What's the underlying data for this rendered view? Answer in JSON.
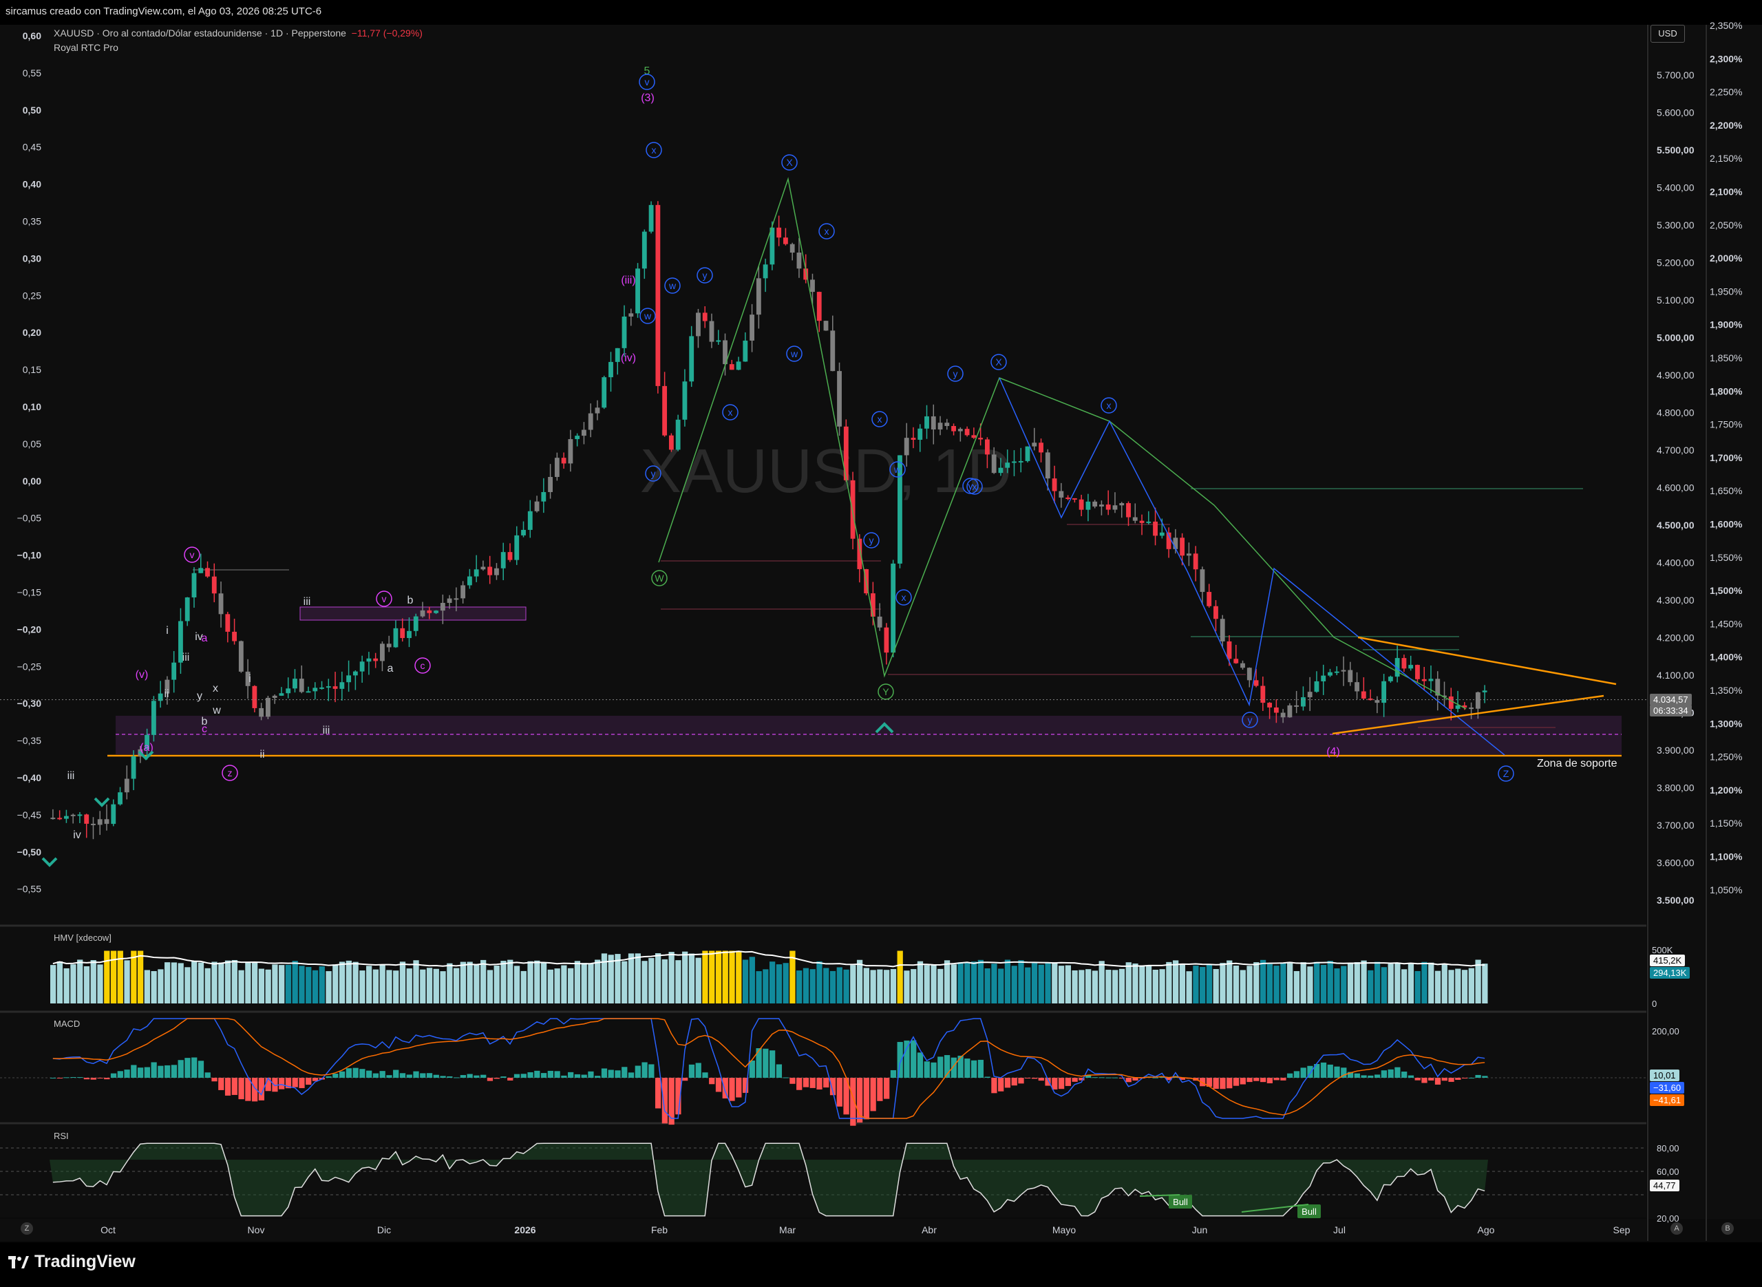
{
  "header": {
    "attribution": "sircamus creado con TradingView.com, el Ago 03, 2026 08:25 UTC-6"
  },
  "legend": {
    "symbol_line": "XAUUSD · Oro al contado/Dólar estadounidense · 1D · Pepperstone",
    "change": "−11,77 (−0,29%)",
    "indicator": "Royal RTC Pro",
    "watermark": "XAUUSD, 1D"
  },
  "currency": "USD",
  "price_tag": {
    "price": "4.034,57",
    "countdown": "06:33:34"
  },
  "zone_label": "Zona de soporte",
  "footer": {
    "brand": "TradingView",
    "btn_left": "Z",
    "btn_auto": "A",
    "btn_log": "B"
  },
  "colors": {
    "up": "#22ab94",
    "down": "#f23645",
    "neutral": "#808080",
    "orange": "#ff9800",
    "wave_blue": "#2962ff",
    "wave_purple": "#e040fb",
    "wave_green": "#4caf50",
    "vol_light": "#a8d8dc",
    "vol_dark": "#118a9c",
    "vol_yellow": "#f9d000"
  },
  "chart_data": [
    {
      "type": "line",
      "name": "main",
      "x_axis_labels": [
        "Oct",
        "Nov",
        "Dic",
        "2026",
        "Feb",
        "Mar",
        "Abr",
        "Mayo",
        "Jun",
        "Jul",
        "Ago",
        "Sep"
      ],
      "right_axis": {
        "labels": [
          "5.700,00",
          "5.600,00",
          "5.500,00",
          "5.400,00",
          "5.300,00",
          "5.200,00",
          "5.100,00",
          "5.000,00",
          "4.900,00",
          "4.800,00",
          "4.700,00",
          "4.600,00",
          "4.500,00",
          "4.400,00",
          "4.300,00",
          "4.200,00",
          "4.100,00",
          "4.000,00",
          "3.900,00",
          "3.800,00",
          "3.700,00",
          "3.600,00",
          "3.500,00"
        ],
        "ylim": [
          3450,
          5800
        ]
      },
      "far_right_axis": {
        "labels": [
          "2,350%",
          "2,300%",
          "2,250%",
          "2,200%",
          "2,150%",
          "2,100%",
          "2,050%",
          "2,000%",
          "1,950%",
          "1,900%",
          "1,850%",
          "1,800%",
          "1,750%",
          "1,700%",
          "1,650%",
          "1,600%",
          "1,550%",
          "1,500%",
          "1,450%",
          "1,400%",
          "1,350%",
          "1,300%",
          "1,250%",
          "1,200%",
          "1,150%",
          "1,100%",
          "1,050%"
        ]
      },
      "left_axis": {
        "labels": [
          "0,60",
          "0,55",
          "0,50",
          "0,45",
          "0,40",
          "0,35",
          "0,30",
          "0,25",
          "0,20",
          "0,15",
          "0,10",
          "0,05",
          "0,00",
          "−0,05",
          "−0,10",
          "−0,15",
          "−0,20",
          "−0,25",
          "−0,30",
          "−0,35",
          "−0,40",
          "−0,45",
          "−0,50",
          "−0,55"
        ]
      },
      "close_series_approx": {
        "x_month_index": [
          0.0,
          0.25,
          0.45,
          0.6,
          0.8,
          1.0,
          1.3,
          1.6,
          2.0,
          2.3,
          2.6,
          2.9,
          3.2,
          3.5,
          3.8,
          3.95,
          4.0,
          4.1,
          4.3,
          4.6,
          4.9,
          5.1,
          5.3,
          5.5,
          5.7,
          5.8,
          6.0,
          6.3,
          6.5,
          6.8,
          7.0,
          7.3,
          7.6,
          7.9,
          8.2,
          8.4,
          8.6,
          8.8,
          9.0,
          9.2,
          9.4,
          9.6,
          9.75
        ],
        "y": [
          3720,
          3950,
          4150,
          4420,
          4250,
          4000,
          4080,
          4060,
          4180,
          4260,
          4350,
          4420,
          4640,
          4800,
          5100,
          5400,
          4750,
          4720,
          5070,
          4900,
          5300,
          5200,
          4980,
          4370,
          4150,
          4700,
          4780,
          4760,
          4640,
          4700,
          4560,
          4560,
          4500,
          4430,
          4150,
          4050,
          4000,
          4060,
          4130,
          4010,
          4130,
          4080,
          4035
        ]
      },
      "annotations": [
        "5",
        "v",
        "(3)",
        "x",
        "X",
        "x",
        "w",
        "y",
        "(iii)",
        "(iv)",
        "w",
        "y",
        "w",
        "x",
        "y",
        "X",
        "x",
        "w",
        "y",
        "x",
        "y",
        "Y",
        "W",
        "x",
        "x",
        "y",
        "Z",
        "(4)",
        "iii",
        "v",
        "b",
        "a",
        "c",
        "i",
        "ii",
        "iii",
        "iv",
        "x",
        "w",
        "a",
        "b",
        "c",
        "y",
        "z",
        "iv",
        "(v)",
        "(a)"
      ],
      "support_level": 3875,
      "triangle_upper": [
        [
          9.15,
          4200
        ],
        [
          9.95,
          4060
        ]
      ],
      "triangle_lower": [
        [
          8.95,
          3960
        ],
        [
          9.95,
          4080
        ]
      ]
    },
    {
      "type": "bar",
      "name": "HMV [xdecow]",
      "title": "HMV [xdecow]",
      "axis_labels": [
        "500K",
        "0"
      ],
      "last_value": "415,2K",
      "last_ma": "294,13K"
    },
    {
      "type": "bar",
      "name": "MACD",
      "title": "MACD",
      "axis_labels": [
        "200,00"
      ],
      "histogram": "10,01",
      "macd": "−31,60",
      "signal": "−41,61"
    },
    {
      "type": "line",
      "name": "RSI",
      "title": "RSI",
      "axis_labels": [
        "80,00",
        "60,00",
        "20,00"
      ],
      "value": "44,77",
      "bull_labels": [
        "Bull",
        "Bull"
      ]
    }
  ]
}
